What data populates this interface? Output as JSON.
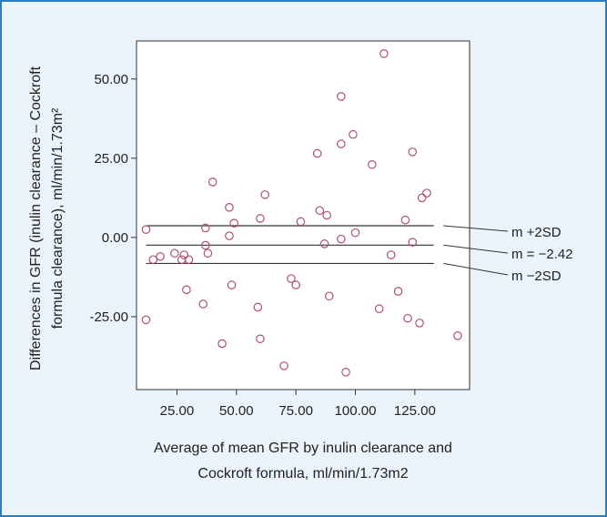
{
  "chart_data": {
    "type": "scatter",
    "xlabel_lines": [
      "Average of mean GFR by inulin clearance and",
      "Cockroft formula, ml/min/1.73m2"
    ],
    "ylabel_lines": [
      "Differences in GFR (inulin clearance – Cockroft",
      "formula clearance), ml/min/1.73m²"
    ],
    "xlim": [
      8,
      148
    ],
    "ylim": [
      -48,
      62
    ],
    "xticks": [
      25,
      50,
      75,
      100,
      125
    ],
    "xtick_labels": [
      "25.00",
      "50.00",
      "75.00",
      "100.00",
      "125.00"
    ],
    "yticks": [
      50,
      25,
      0,
      -25
    ],
    "ytick_labels": [
      "50.00",
      "25.00",
      "0.00",
      "-25.00"
    ],
    "grid": false,
    "marker_color": "#b05070",
    "line_color": "#333333",
    "reference_lines": [
      {
        "y": 3.7,
        "label": "m +2SD"
      },
      {
        "y": -2.42,
        "label": "m = −2.42"
      },
      {
        "y": -8.2,
        "label": "m −2SD"
      }
    ],
    "points": [
      {
        "x": 12,
        "y": 2.5
      },
      {
        "x": 12,
        "y": -26
      },
      {
        "x": 15,
        "y": -7
      },
      {
        "x": 18,
        "y": -6
      },
      {
        "x": 24,
        "y": -5
      },
      {
        "x": 27,
        "y": -7
      },
      {
        "x": 28,
        "y": -5.5
      },
      {
        "x": 30,
        "y": -7
      },
      {
        "x": 29,
        "y": -16.5
      },
      {
        "x": 36,
        "y": -21
      },
      {
        "x": 37,
        "y": 3
      },
      {
        "x": 37,
        "y": -2.5
      },
      {
        "x": 38,
        "y": -5
      },
      {
        "x": 40,
        "y": 17.5
      },
      {
        "x": 44,
        "y": -33.5
      },
      {
        "x": 47,
        "y": 9.5
      },
      {
        "x": 47,
        "y": 0.5
      },
      {
        "x": 48,
        "y": -15
      },
      {
        "x": 49,
        "y": 4.5
      },
      {
        "x": 59,
        "y": -22
      },
      {
        "x": 60,
        "y": 6
      },
      {
        "x": 60,
        "y": -32
      },
      {
        "x": 62,
        "y": 13.5
      },
      {
        "x": 70,
        "y": -40.5
      },
      {
        "x": 73,
        "y": -13
      },
      {
        "x": 75,
        "y": -15
      },
      {
        "x": 77,
        "y": 5
      },
      {
        "x": 84,
        "y": 26.5
      },
      {
        "x": 85,
        "y": 8.5
      },
      {
        "x": 87,
        "y": -2
      },
      {
        "x": 88,
        "y": 7
      },
      {
        "x": 89,
        "y": -18.5
      },
      {
        "x": 94,
        "y": 44.5
      },
      {
        "x": 94,
        "y": 29.5
      },
      {
        "x": 94,
        "y": -0.5
      },
      {
        "x": 96,
        "y": -42.5
      },
      {
        "x": 99,
        "y": 32.5
      },
      {
        "x": 100,
        "y": 1.5
      },
      {
        "x": 107,
        "y": 23
      },
      {
        "x": 110,
        "y": -22.5
      },
      {
        "x": 112,
        "y": 58
      },
      {
        "x": 115,
        "y": -5.5
      },
      {
        "x": 118,
        "y": -17
      },
      {
        "x": 121,
        "y": 5.5
      },
      {
        "x": 122,
        "y": -25.5
      },
      {
        "x": 124,
        "y": 27
      },
      {
        "x": 124,
        "y": -1.5
      },
      {
        "x": 127,
        "y": -27
      },
      {
        "x": 128,
        "y": 12.5
      },
      {
        "x": 130,
        "y": 14
      },
      {
        "x": 143,
        "y": -31
      }
    ]
  }
}
